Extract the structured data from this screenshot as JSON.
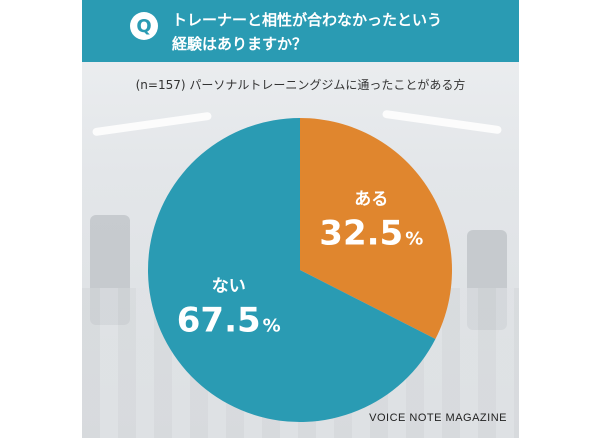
{
  "header": {
    "badge": "Q",
    "question_line1": "トレーナーと相性が合わなかったという",
    "question_line2": "経験はありますか？"
  },
  "note": "(n=157) パーソナルトレーニングジムに通ったことがある方",
  "watermark": "VOICE NOTE MAGAZINE",
  "colors": {
    "header": "#2a9bb3",
    "slice_no": "#2a9bb3",
    "slice_yes": "#e0862e"
  },
  "chart_data": {
    "type": "pie",
    "categories": [
      "ある",
      "ない"
    ],
    "values": [
      32.5,
      67.5
    ],
    "labels": [
      "32.5",
      "67.5"
    ],
    "unit": "%",
    "colors": [
      "#e0862e",
      "#2a9bb3"
    ]
  }
}
